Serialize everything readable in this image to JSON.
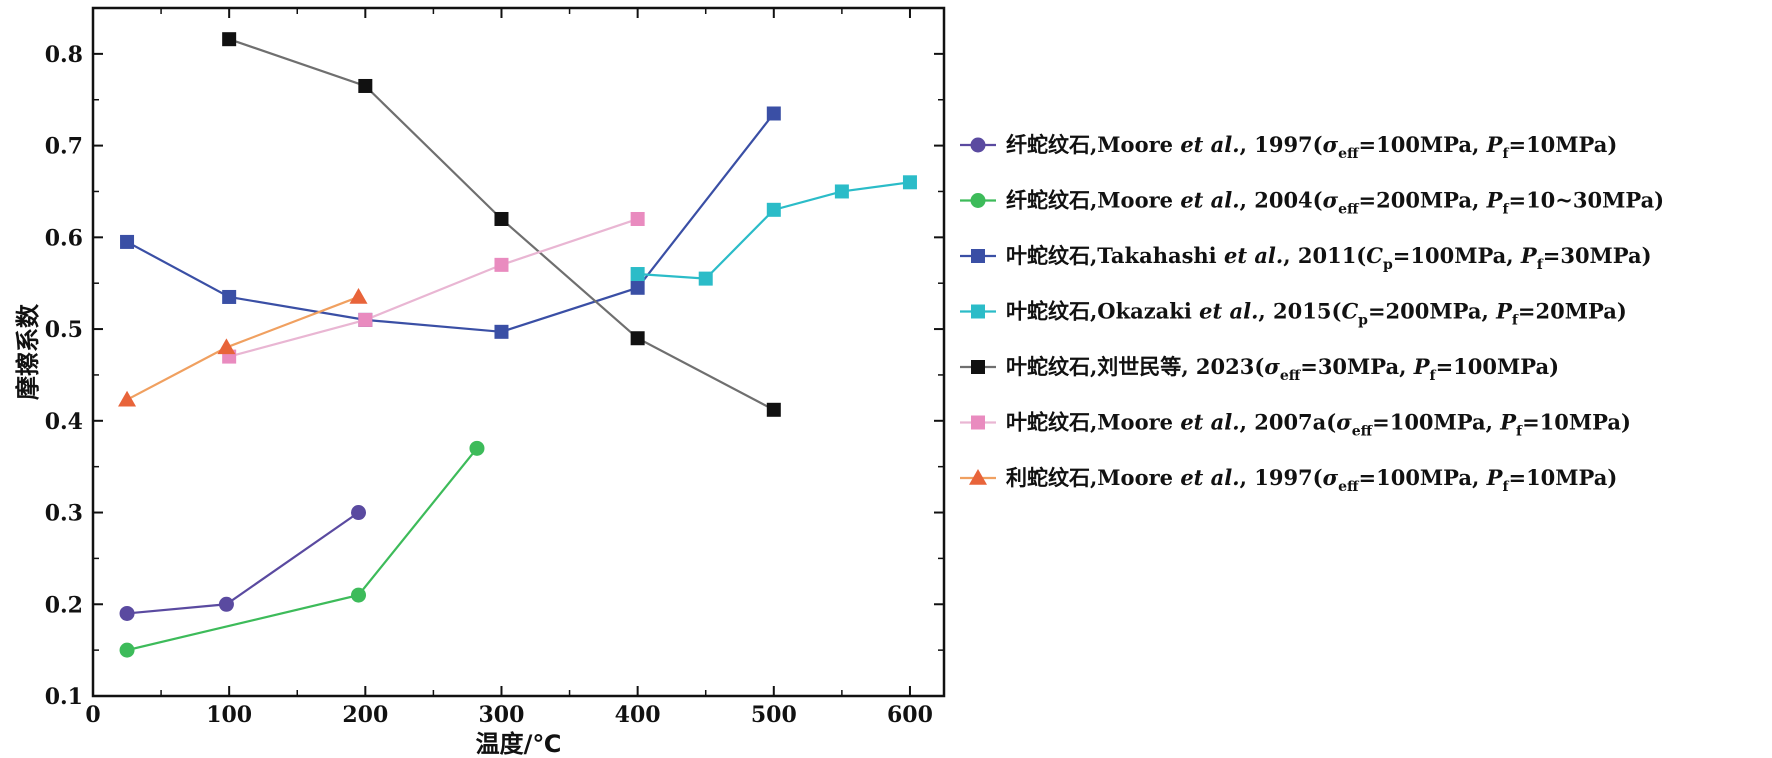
{
  "chart_data": {
    "type": "line",
    "xlabel": "温度/℃",
    "ylabel": "摩擦系数",
    "xlim": [
      0,
      625
    ],
    "ylim": [
      0.1,
      0.85
    ],
    "xticks": [
      "0",
      "100",
      "200",
      "300",
      "400",
      "500",
      "600"
    ],
    "yticks": [
      "0.1",
      "0.2",
      "0.3",
      "0.4",
      "0.5",
      "0.6",
      "0.7",
      "0.8"
    ],
    "grid": false,
    "legend_position": "right",
    "series": [
      {
        "name": "纤蛇纹石,Moore et al., 1997(σeff=100MPa, Pf=10MPa)",
        "label_parts": {
          "mineral": "纤蛇纹石,Moore ",
          "et_al": "et al.",
          "year": ", 1997(",
          "p1_sym": "σ",
          "p1_sub": "eff",
          "p1_val": "=100MPa, ",
          "p2_sym": "P",
          "p2_sub": "f",
          "p2_val": "=10MPa)"
        },
        "marker": "circle",
        "color": "#5a4aa0",
        "points": [
          [
            25,
            0.19
          ],
          [
            98,
            0.2
          ],
          [
            195,
            0.3
          ]
        ]
      },
      {
        "name": "纤蛇纹石,Moore et al., 2004(σeff=200MPa, Pf=10~30MPa)",
        "label_parts": {
          "mineral": "纤蛇纹石,Moore ",
          "et_al": "et al.",
          "year": ", 2004(",
          "p1_sym": "σ",
          "p1_sub": "eff",
          "p1_val": "=200MPa, ",
          "p2_sym": "P",
          "p2_sub": "f",
          "p2_val": "=10~30MPa)"
        },
        "marker": "circle",
        "color": "#3dbb5a",
        "points": [
          [
            25,
            0.15
          ],
          [
            195,
            0.21
          ],
          [
            282,
            0.37
          ]
        ]
      },
      {
        "name": "叶蛇纹石,Takahashi et al., 2011(Cp=100MPa, Pf=30MPa)",
        "label_parts": {
          "mineral": "叶蛇纹石,Takahashi ",
          "et_al": "et al.",
          "year": ", 2011(",
          "p1_sym": "C",
          "p1_sub": "p",
          "p1_val": "=100MPa, ",
          "p2_sym": "P",
          "p2_sub": "f",
          "p2_val": "=30MPa)"
        },
        "marker": "square",
        "color": "#3a4fa5",
        "points": [
          [
            25,
            0.595
          ],
          [
            100,
            0.535
          ],
          [
            200,
            0.51
          ],
          [
            300,
            0.497
          ],
          [
            400,
            0.545
          ],
          [
            500,
            0.735
          ]
        ]
      },
      {
        "name": "叶蛇纹石,Okazaki et al., 2015(Cp=200MPa, Pf=20MPa)",
        "label_parts": {
          "mineral": "叶蛇纹石,Okazaki ",
          "et_al": "et al.",
          "year": ", 2015(",
          "p1_sym": "C",
          "p1_sub": "p",
          "p1_val": "=200MPa, ",
          "p2_sym": "P",
          "p2_sub": "f",
          "p2_val": "=20MPa)"
        },
        "marker": "square",
        "color": "#2bbcc8",
        "points": [
          [
            400,
            0.56
          ],
          [
            450,
            0.555
          ],
          [
            500,
            0.63
          ],
          [
            550,
            0.65
          ],
          [
            600,
            0.66
          ]
        ]
      },
      {
        "name": "叶蛇纹石,刘世民等, 2023(σeff=30MPa, Pf=100MPa)",
        "label_parts": {
          "mineral": "叶蛇纹石,刘世民等",
          "et_al": "",
          "year": ", 2023(",
          "p1_sym": "σ",
          "p1_sub": "eff",
          "p1_val": "=30MPa, ",
          "p2_sym": "P",
          "p2_sub": "f",
          "p2_val": "=100MPa)"
        },
        "marker": "square",
        "color": "#111111",
        "line_color": "#6f6f6f",
        "points": [
          [
            100,
            0.816
          ],
          [
            200,
            0.765
          ],
          [
            300,
            0.62
          ],
          [
            400,
            0.49
          ],
          [
            500,
            0.412
          ]
        ]
      },
      {
        "name": "叶蛇纹石,Moore et al., 2007a(σeff=100MPa, Pf=10MPa)",
        "label_parts": {
          "mineral": "叶蛇纹石,Moore ",
          "et_al": "et al.",
          "year": ", 2007a(",
          "p1_sym": "σ",
          "p1_sub": "eff",
          "p1_val": "=100MPa, ",
          "p2_sym": "P",
          "p2_sub": "f",
          "p2_val": "=10MPa)"
        },
        "marker": "square",
        "color": "#e98bbf",
        "line_color": "#e9b6d3",
        "points": [
          [
            100,
            0.47
          ],
          [
            200,
            0.51
          ],
          [
            300,
            0.57
          ],
          [
            400,
            0.62
          ]
        ]
      },
      {
        "name": "利蛇纹石,Moore et al., 1997(σeff=100MPa, Pf=10MPa)",
        "label_parts": {
          "mineral": "利蛇纹石,Moore ",
          "et_al": "et al.",
          "year": ", 1997(",
          "p1_sym": "σ",
          "p1_sub": "eff",
          "p1_val": "=100MPa, ",
          "p2_sym": "P",
          "p2_sub": "f",
          "p2_val": "=10MPa)"
        },
        "marker": "triangle",
        "color": "#e8643a",
        "line_color": "#f0a060",
        "points": [
          [
            25,
            0.423
          ],
          [
            98,
            0.48
          ],
          [
            195,
            0.535
          ]
        ]
      }
    ]
  }
}
